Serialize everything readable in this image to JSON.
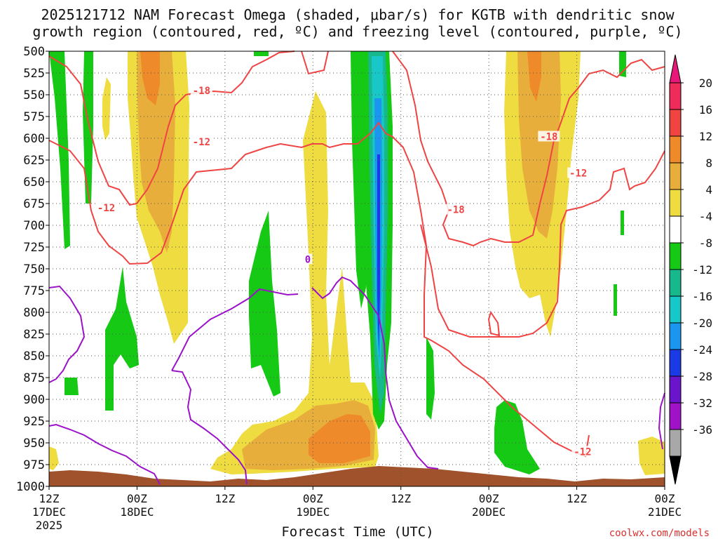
{
  "chart_data": {
    "type": "heatmap",
    "title": "2025121712 NAM Forecast Omega (shaded, μbar/s) for KGTB with dendritic snow",
    "subtitle": "growth region (contoured, red, ºC) and freezing level (contoured, purple, ºC)",
    "xlabel": "Forecast Time (UTC)",
    "ylabel": "",
    "credit": "coolwx.com/models",
    "ylim": [
      1000,
      500
    ],
    "xlim_hours": [
      0,
      84
    ],
    "y_ticks": [
      "500",
      "525",
      "550",
      "575",
      "600",
      "625",
      "650",
      "675",
      "700",
      "725",
      "750",
      "775",
      "800",
      "825",
      "850",
      "875",
      "900",
      "925",
      "950",
      "975",
      "1000"
    ],
    "x_ticks": [
      {
        "hour": 0,
        "top": "12Z",
        "mid": "17DEC",
        "bot": "2025"
      },
      {
        "hour": 12,
        "top": "00Z",
        "mid": "18DEC",
        "bot": ""
      },
      {
        "hour": 24,
        "top": "12Z",
        "mid": "",
        "bot": ""
      },
      {
        "hour": 36,
        "top": "00Z",
        "mid": "19DEC",
        "bot": ""
      },
      {
        "hour": 48,
        "top": "12Z",
        "mid": "",
        "bot": ""
      },
      {
        "hour": 60,
        "top": "00Z",
        "mid": "20DEC",
        "bot": ""
      },
      {
        "hour": 72,
        "top": "12Z",
        "mid": "",
        "bot": ""
      },
      {
        "hour": 84,
        "top": "00Z",
        "mid": "21DEC",
        "bot": ""
      }
    ],
    "colorbar": {
      "labels": [
        "20",
        "16",
        "12",
        "8",
        "4",
        "-4",
        "-8",
        "-12",
        "-16",
        "-20",
        "-24",
        "-28",
        "-32",
        "-36"
      ],
      "colors": [
        "#ef2b5b",
        "#ef4440",
        "#ef8a2a",
        "#e8ae3c",
        "#eedc40",
        "#ffffff",
        "#15c915",
        "#16b88c",
        "#18c8c8",
        "#1a96ef",
        "#1a3ae6",
        "#6a14cc",
        "#a012c8",
        "#a8a8a8"
      ],
      "top_arrow_color": "#e8187a",
      "bottom_arrow_color": "#000000"
    },
    "contour_labels": [
      {
        "text": "-18",
        "color": "#ef4444",
        "hour": 20.8,
        "p": 545
      },
      {
        "text": "-12",
        "color": "#ef4444",
        "hour": 20.8,
        "p": 604
      },
      {
        "text": "-12",
        "color": "#ef4444",
        "hour": 7.8,
        "p": 680
      },
      {
        "text": "-18",
        "color": "#ef4444",
        "hour": 68.2,
        "p": 598
      },
      {
        "text": "-12",
        "color": "#ef4444",
        "hour": 72.2,
        "p": 640
      },
      {
        "text": "-18",
        "color": "#ef4444",
        "hour": 55.5,
        "p": 682
      },
      {
        "text": "-12",
        "color": "#ef4444",
        "hour": 72.8,
        "p": 960
      },
      {
        "text": "0",
        "color": "#9b12c8",
        "hour": 35.3,
        "p": 739
      }
    ]
  }
}
